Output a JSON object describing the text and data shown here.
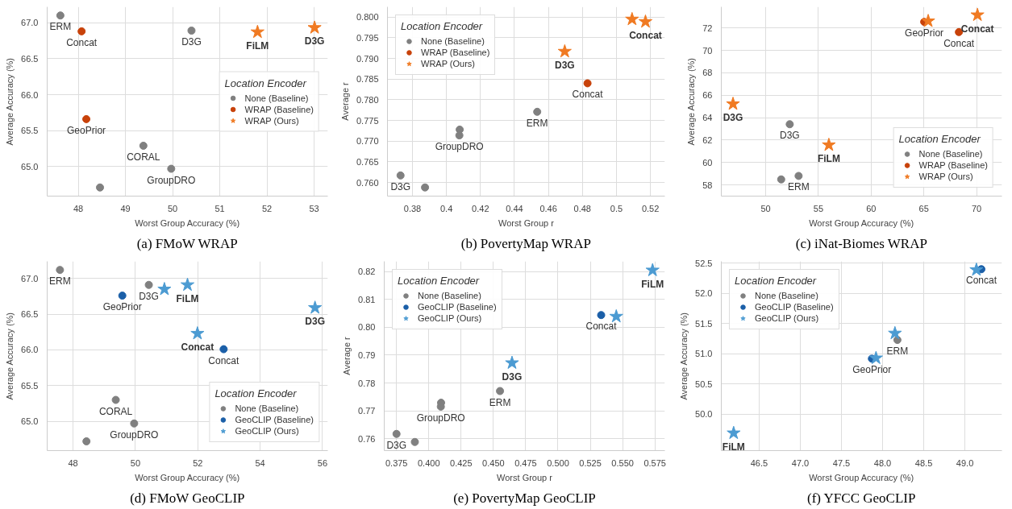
{
  "chart_data": [
    {
      "type": "scatter",
      "title": "(a) FMoW WRAP",
      "xlabel": "Worst Group Accuracy (%)",
      "ylabel": "Average Accuracy (%)",
      "legend_title": "Location Encoder",
      "legend": "right",
      "grid": true,
      "xlim": [
        47.34,
        53.29
      ],
      "ylim": [
        64.59,
        67.22
      ],
      "xticks": [
        48,
        49,
        50,
        51,
        52,
        53
      ],
      "yticks": [
        {
          "value": 65,
          "label": "65.0"
        },
        65.5,
        {
          "value": 66,
          "label": "66.0"
        },
        66.5,
        {
          "value": 67,
          "label": "67.0"
        }
      ],
      "series": [
        {
          "name": "None (Baseline)",
          "color": "#808080",
          "marker": "circle",
          "x": [
            47.62,
            50.4,
            49.38,
            49.97,
            48.46
          ],
          "values": [
            67.1,
            66.89,
            65.29,
            64.97,
            64.71
          ],
          "value_labels": [
            "ERM",
            "D3G",
            "CORAL",
            "GroupDRO",
            null
          ]
        },
        {
          "name": "WRAP (Baseline)",
          "color": "#c8420a",
          "marker": "circle",
          "x": [
            48.07,
            48.17
          ],
          "values": [
            66.88,
            65.66
          ],
          "value_labels": [
            "Concat",
            "GeoPrior"
          ]
        },
        {
          "name": "WRAP (Ours)",
          "color": "#f07a22",
          "marker": "star",
          "x": [
            51.8,
            53.01
          ],
          "values": [
            66.87,
            66.93
          ],
          "value_labels": [
            "FiLM",
            "D3G"
          ]
        }
      ]
    },
    {
      "type": "scatter",
      "title": "(b) PovertyMap WRAP",
      "xlabel": "Worst Group r",
      "ylabel": "Average r",
      "legend_title": "Location Encoder",
      "legend": "top left",
      "grid": true,
      "xlim": [
        0.3653,
        0.5285
      ],
      "ylim": [
        0.7567,
        0.8025
      ],
      "xticks": [
        0.38,
        0.4,
        0.42,
        0.44,
        0.46,
        0.48,
        0.5,
        0.52
      ],
      "yticks": [
        {
          "value": 0.76,
          "label": "0.760"
        },
        0.765,
        {
          "value": 0.77,
          "label": "0.770"
        },
        0.775,
        {
          "value": 0.78,
          "label": "0.780"
        },
        0.785,
        {
          "value": 0.79,
          "label": "0.790"
        },
        0.795,
        {
          "value": 0.8,
          "label": "0.800"
        }
      ],
      "series": [
        {
          "name": "None (Baseline)",
          "color": "#808080",
          "marker": "circle",
          "x": [
            0.373,
            0.3874,
            0.4078,
            0.4076,
            0.4534
          ],
          "values": [
            0.7617,
            0.7588,
            0.7728,
            0.7714,
            0.7771
          ],
          "value_labels": [
            "D3G",
            null,
            null,
            "GroupDRO",
            "ERM"
          ]
        },
        {
          "name": "WRAP (Baseline)",
          "color": "#c8420a",
          "marker": "circle",
          "x": [
            0.483
          ],
          "values": [
            0.784
          ],
          "value_labels": [
            "Concat"
          ]
        },
        {
          "name": "WRAP (Ours)",
          "color": "#f07a22",
          "marker": "star",
          "x": [
            0.4696,
            0.5092,
            0.5171
          ],
          "values": [
            0.7917,
            0.7995,
            0.7989
          ],
          "value_labels": [
            "D3G",
            null,
            "Concat"
          ]
        }
      ]
    },
    {
      "type": "scatter",
      "title": "(c) iNat-Biomes WRAP",
      "xlabel": "Worst Group Accuracy (%)",
      "ylabel": "Average Accuracy (%)",
      "legend_title": "Location Encoder",
      "legend": "bottom right",
      "grid": true,
      "xlim": [
        45.79,
        72.4
      ],
      "ylim": [
        57.0,
        73.88
      ],
      "xticks": [
        50,
        55,
        60,
        65,
        70
      ],
      "yticks": [
        58,
        60,
        62,
        64,
        66,
        68,
        70,
        72
      ],
      "series": [
        {
          "name": "None (Baseline)",
          "color": "#808080",
          "marker": "circle",
          "x": [
            52.28,
            53.12,
            51.47
          ],
          "values": [
            63.41,
            58.8,
            58.49
          ],
          "value_labels": [
            "D3G",
            "ERM",
            null
          ]
        },
        {
          "name": "WRAP (Baseline)",
          "color": "#c8420a",
          "marker": "circle",
          "x": [
            65.03,
            68.32
          ],
          "values": [
            72.54,
            71.63
          ],
          "value_labels": [
            "GeoPrior",
            "Concat"
          ]
        },
        {
          "name": "WRAP (Ours)",
          "color": "#f07a22",
          "marker": "star",
          "x": [
            46.9,
            55.99,
            65.41,
            70.08
          ],
          "values": [
            65.22,
            61.56,
            72.61,
            73.15
          ],
          "value_labels": [
            "D3G",
            "FiLM",
            null,
            "Concat"
          ]
        }
      ]
    },
    {
      "type": "scatter",
      "title": "(d) FMoW GeoCLIP",
      "xlabel": "Worst Group Accuracy (%)",
      "ylabel": "Average Accuracy (%)",
      "legend_title": "Location Encoder",
      "legend": "bottom right",
      "grid": true,
      "xlim": [
        47.17,
        56.17
      ],
      "ylim": [
        64.59,
        67.24
      ],
      "xticks": [
        48,
        50,
        52,
        54,
        56
      ],
      "yticks": [
        {
          "value": 65,
          "label": "65.0"
        },
        65.5,
        {
          "value": 66,
          "label": "66.0"
        },
        66.5,
        {
          "value": 67,
          "label": "67.0"
        }
      ],
      "series": [
        {
          "name": "None (Baseline)",
          "color": "#808080",
          "marker": "circle",
          "x": [
            47.58,
            50.43,
            49.37,
            49.96,
            48.43
          ],
          "values": [
            67.12,
            66.91,
            65.3,
            64.97,
            64.72
          ],
          "value_labels": [
            "ERM",
            "D3G",
            "CORAL",
            "GroupDRO",
            null
          ]
        },
        {
          "name": "GeoCLIP (Baseline)",
          "color": "#1b5fa8",
          "marker": "circle",
          "x": [
            49.58,
            52.83
          ],
          "values": [
            66.76,
            66.01
          ],
          "value_labels": [
            "GeoPrior",
            "Concat"
          ]
        },
        {
          "name": "GeoCLIP (Ours)",
          "color": "#4c9bd2",
          "marker": "star",
          "x": [
            50.93,
            51.67,
            55.76,
            51.99
          ],
          "values": [
            66.85,
            66.91,
            66.59,
            66.23
          ],
          "value_labels": [
            null,
            "FiLM",
            "D3G",
            "Concat"
          ]
        }
      ]
    },
    {
      "type": "scatter",
      "title": "(e) PovertyMap GeoCLIP",
      "xlabel": "Worst Group r",
      "ylabel": "Average r",
      "legend_title": "Location Encoder",
      "legend": "top left",
      "grid": true,
      "xlim": [
        0.3655,
        0.5827
      ],
      "ylim": [
        0.7557,
        0.8237
      ],
      "xticks": [
        0.375,
        {
          "value": 0.4,
          "label": "0.400"
        },
        0.425,
        {
          "value": 0.45,
          "label": "0.450"
        },
        0.475,
        {
          "value": 0.5,
          "label": "0.500"
        },
        0.525,
        {
          "value": 0.55,
          "label": "0.550"
        },
        0.575
      ],
      "yticks": [
        0.76,
        0.77,
        0.78,
        0.79,
        {
          "value": 0.8,
          "label": "0.80"
        },
        0.81,
        0.82
      ],
      "series": [
        {
          "name": "None (Baseline)",
          "color": "#808080",
          "marker": "circle",
          "x": [
            0.375,
            0.3892,
            0.4095,
            0.4093,
            0.4551
          ],
          "values": [
            0.7617,
            0.7588,
            0.7729,
            0.7715,
            0.7771
          ],
          "value_labels": [
            "D3G",
            null,
            null,
            "GroupDRO",
            "ERM"
          ]
        },
        {
          "name": "GeoCLIP (Baseline)",
          "color": "#1b5fa8",
          "marker": "circle",
          "x": [
            0.5334
          ],
          "values": [
            0.8044
          ],
          "value_labels": [
            "Concat"
          ]
        },
        {
          "name": "GeoCLIP (Ours)",
          "color": "#4c9bd2",
          "marker": "star",
          "x": [
            0.4644,
            0.5451,
            0.5732
          ],
          "values": [
            0.7872,
            0.8039,
            0.8205
          ],
          "value_labels": [
            "D3G",
            null,
            "FiLM"
          ]
        }
      ]
    },
    {
      "type": "scatter",
      "title": "(f) YFCC GeoCLIP",
      "xlabel": "Worst Group Accuracy (%)",
      "ylabel": "Average Accuracy (%)",
      "legend_title": "Location Encoder",
      "legend": "top left",
      "grid": true,
      "xlim": [
        46.04,
        49.45
      ],
      "ylim": [
        49.4,
        52.53
      ],
      "xticks": [
        46.5,
        {
          "value": 47,
          "label": "47.0"
        },
        47.5,
        {
          "value": 48,
          "label": "48.0"
        },
        48.5,
        {
          "value": 49,
          "label": "49.0"
        }
      ],
      "yticks": [
        {
          "value": 50,
          "label": "50.0"
        },
        50.5,
        {
          "value": 51,
          "label": "51.0"
        },
        51.5,
        {
          "value": 52,
          "label": "52.0"
        },
        52.5
      ],
      "series": [
        {
          "name": "None (Baseline)",
          "color": "#808080",
          "marker": "circle",
          "x": [
            48.18
          ],
          "values": [
            51.23
          ],
          "value_labels": [
            "ERM"
          ]
        },
        {
          "name": "GeoCLIP (Baseline)",
          "color": "#1b5fa8",
          "marker": "circle",
          "x": [
            47.87,
            49.2
          ],
          "values": [
            50.92,
            52.4
          ],
          "value_labels": [
            "GeoPrior",
            "Concat"
          ]
        },
        {
          "name": "GeoCLIP (Ours)",
          "color": "#4c9bd2",
          "marker": "star",
          "x": [
            48.15,
            47.92,
            49.14,
            46.19
          ],
          "values": [
            51.34,
            50.93,
            52.39,
            49.69
          ],
          "value_labels": [
            null,
            null,
            null,
            "FiLM"
          ]
        }
      ]
    }
  ]
}
